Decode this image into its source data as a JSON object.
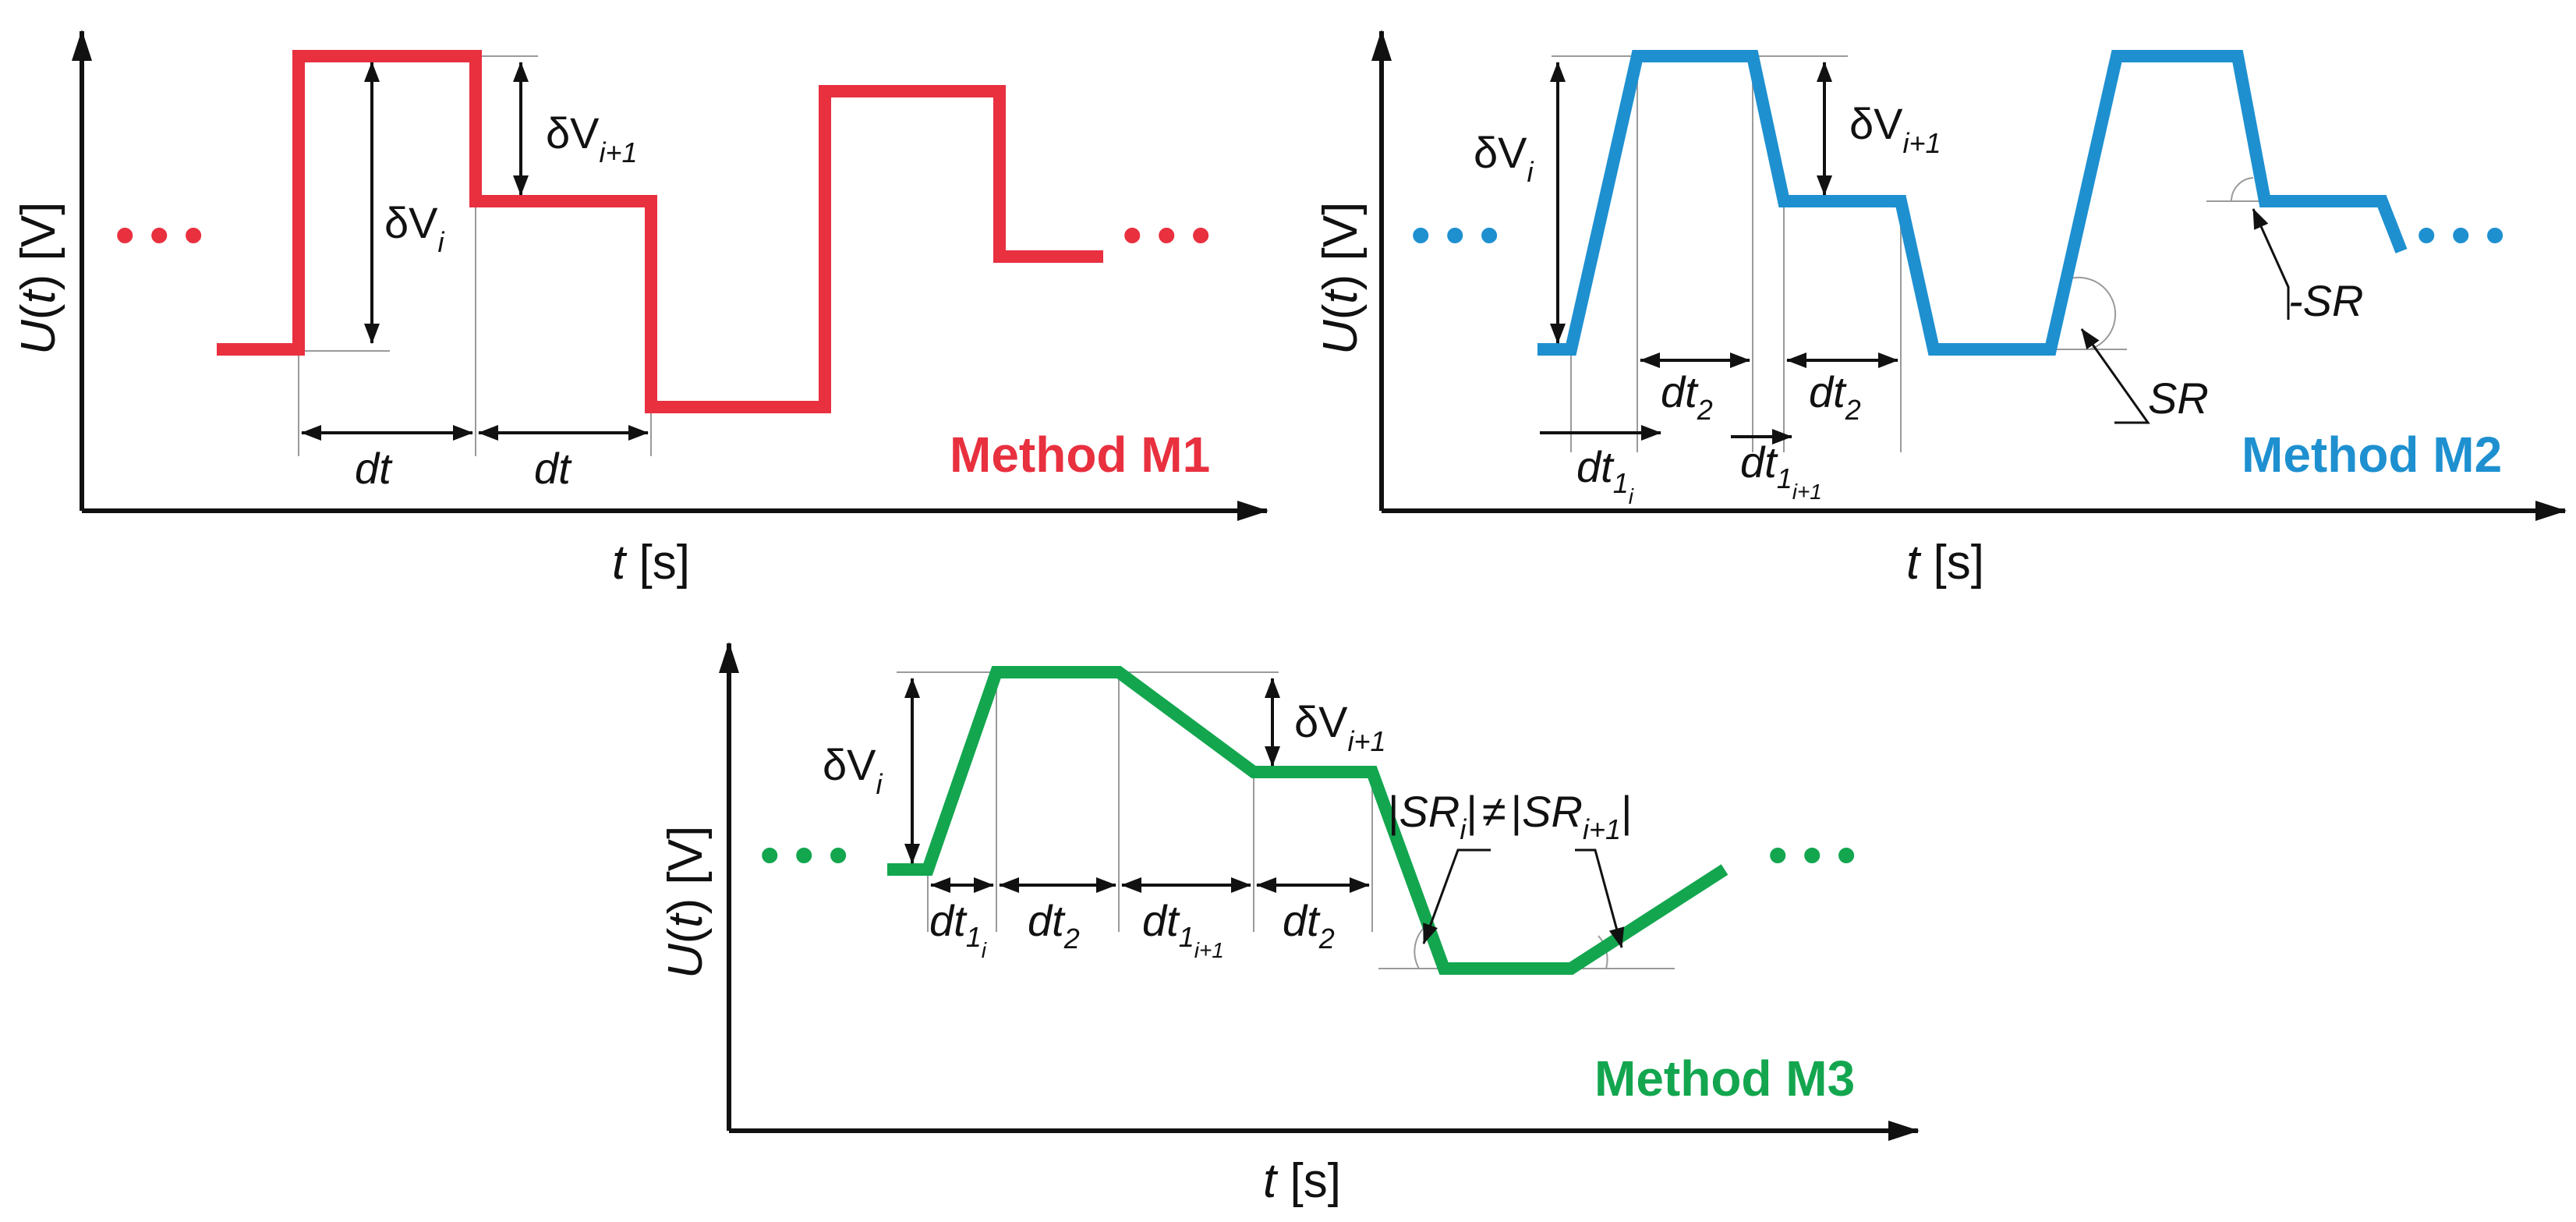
{
  "colors": {
    "m1": "#e8303f",
    "m2": "#1e90d0",
    "m3": "#13a64f",
    "ink": "#111111"
  },
  "panel_m1": {
    "method_label": "Method M1",
    "y_axis": {
      "sym": "U",
      "arg": "t",
      "unit": "[V]"
    },
    "x_axis": {
      "sym": "t",
      "unit": "[s]"
    },
    "delta_vi": {
      "base": "δV",
      "sub": "i"
    },
    "delta_vi1": {
      "base": "δV",
      "sub": "i+1"
    },
    "dt_label_1": "dt",
    "dt_label_2": "dt",
    "ellipsis_left": "• • •",
    "ellipsis_right": "• • •"
  },
  "panel_m2": {
    "method_label": "Method M2",
    "y_axis": {
      "sym": "U",
      "arg": "t",
      "unit": "[V]"
    },
    "x_axis": {
      "sym": "t",
      "unit": "[s]"
    },
    "delta_vi": {
      "base": "δV",
      "sub": "i"
    },
    "delta_vi1": {
      "base": "δV",
      "sub": "i+1"
    },
    "dt2_a": {
      "base": "dt",
      "sub": "2"
    },
    "dt2_b": {
      "base": "dt",
      "sub": "2"
    },
    "dt1_i": {
      "base": "dt",
      "sub": "1",
      "subsub": "i"
    },
    "dt1_i1": {
      "base": "dt",
      "sub": "1",
      "subsub": "i+1"
    },
    "sr_label": "SR",
    "neg_sr_label": "-SR",
    "ellipsis_left": "• • •",
    "ellipsis_right": "• • •"
  },
  "panel_m3": {
    "method_label": "Method M3",
    "y_axis": {
      "sym": "U",
      "arg": "t",
      "unit": "[V]"
    },
    "x_axis": {
      "sym": "t",
      "unit": "[s]"
    },
    "delta_vi": {
      "base": "δV",
      "sub": "i"
    },
    "delta_vi1": {
      "base": "δV",
      "sub": "i+1"
    },
    "dt1_i": {
      "base": "dt",
      "sub": "1",
      "subsub": "i"
    },
    "dt2_a": {
      "base": "dt",
      "sub": "2"
    },
    "dt1_i1": {
      "base": "dt",
      "sub": "1",
      "subsub": "i+1"
    },
    "dt2_b": {
      "base": "dt",
      "sub": "2"
    },
    "sr_relation": {
      "bar_l": "|",
      "sr1": "SR",
      "sr1_sub": "i",
      "bar_m": "|",
      "neq": "≠",
      "bar_n": "|",
      "sr2": "SR",
      "sr2_sub": "i+1",
      "bar_r": "|"
    },
    "ellipsis_left": "• • •",
    "ellipsis_right": "• • •"
  }
}
